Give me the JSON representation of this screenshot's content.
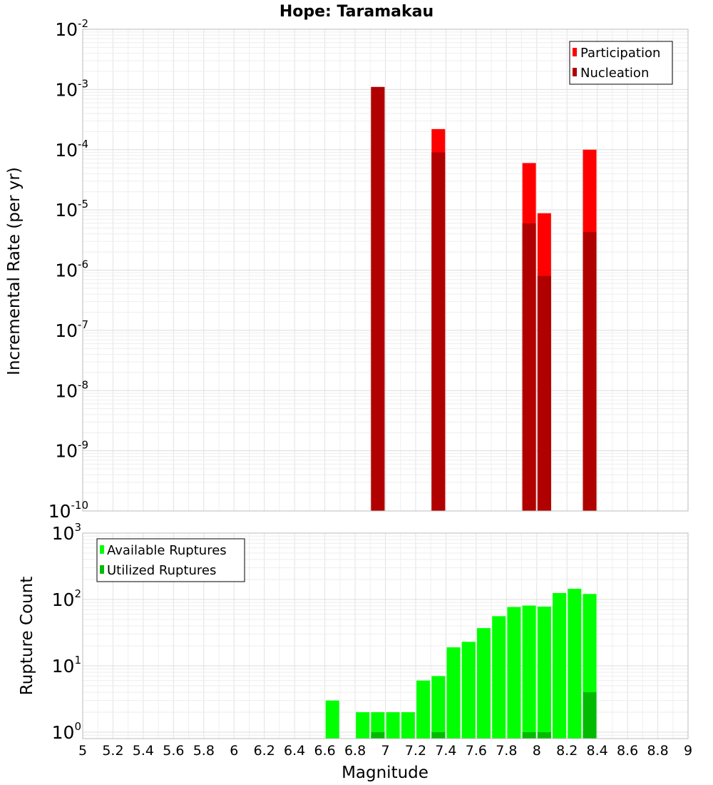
{
  "chart_data": [
    {
      "type": "bar",
      "title": "Hope: Taramakau",
      "xlabel": "Magnitude",
      "ylabel": "Incremental Rate (per yr)",
      "yscale": "log",
      "ylim": [
        1e-10,
        0.01
      ],
      "xlim": [
        5,
        9
      ],
      "x_ticks": [
        "5",
        "5.2",
        "5.4",
        "5.6",
        "5.8",
        "6",
        "6.2",
        "6.4",
        "6.6",
        "6.8",
        "7",
        "7.2",
        "7.4",
        "7.6",
        "7.8",
        "8",
        "8.2",
        "8.4",
        "8.6",
        "8.8",
        "9"
      ],
      "y_tick_exponents": [
        "-10",
        "-9",
        "-8",
        "-7",
        "-6",
        "-5",
        "-4",
        "-3",
        "-2"
      ],
      "y_tick_base": "10",
      "legend_position": "top-right",
      "series": [
        {
          "name": "Participation",
          "color": "#ff0000",
          "x": [
            6.95,
            7.35,
            7.95,
            8.05,
            8.35
          ],
          "values": [
            0.0011,
            0.00022,
            6e-05,
            8.8e-06,
            0.0001
          ]
        },
        {
          "name": "Nucleation",
          "color": "#b00000",
          "x": [
            6.95,
            7.35,
            7.95,
            8.05,
            8.35
          ],
          "values": [
            0.0011,
            9e-05,
            6e-06,
            8e-07,
            4.3e-06
          ]
        }
      ]
    },
    {
      "type": "bar",
      "xlabel": "Magnitude",
      "ylabel": "Rupture Count",
      "yscale": "log",
      "ylim": [
        0.8,
        1000
      ],
      "xlim": [
        5,
        9
      ],
      "y_tick_exponents": [
        "0",
        "1",
        "2",
        "3"
      ],
      "y_tick_base": "10",
      "legend_position": "top-left",
      "series": [
        {
          "name": "Available Ruptures",
          "color": "#00ff00",
          "x": [
            6.65,
            6.85,
            6.95,
            7.05,
            7.15,
            7.25,
            7.35,
            7.45,
            7.55,
            7.65,
            7.75,
            7.85,
            7.95,
            8.05,
            8.15,
            8.25,
            8.35
          ],
          "values": [
            3,
            2,
            2,
            2,
            2,
            6,
            7,
            19,
            23,
            37,
            56,
            77,
            81,
            78,
            125,
            145,
            121
          ]
        },
        {
          "name": "Utilized Ruptures",
          "color": "#00bb00",
          "x": [
            6.95,
            7.35,
            7.95,
            8.05,
            8.35
          ],
          "values": [
            1,
            1,
            1,
            1,
            4
          ]
        }
      ]
    }
  ]
}
